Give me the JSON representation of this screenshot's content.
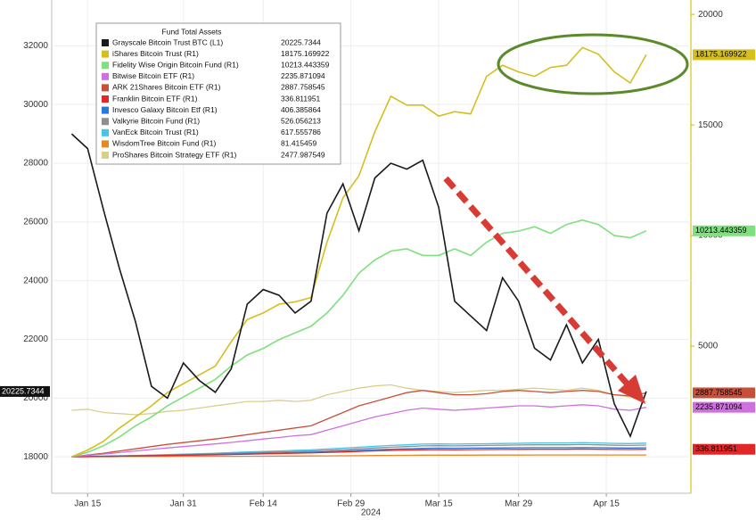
{
  "chart_data": {
    "type": "line",
    "legend_title": "Fund Total Assets",
    "xlabel": "2024",
    "x": [
      0,
      2,
      4,
      6,
      8,
      10,
      12,
      14,
      16,
      18,
      20,
      22,
      24,
      26,
      28,
      30,
      32,
      34,
      36,
      38,
      40,
      42,
      44,
      46,
      48,
      50,
      52,
      54,
      56,
      58,
      60,
      62,
      64,
      66,
      68,
      70,
      72
    ],
    "xlim": [
      -2.5,
      77.6
    ],
    "xticks": [
      {
        "value": 2,
        "label": "Jan 15"
      },
      {
        "value": 14,
        "label": "Jan 31"
      },
      {
        "value": 24,
        "label": "Feb 14"
      },
      {
        "value": 35,
        "label": "Feb 29"
      },
      {
        "value": 46,
        "label": "Mar 15"
      },
      {
        "value": 56,
        "label": "Mar 29"
      },
      {
        "value": 67,
        "label": "Apr 15"
      }
    ],
    "ylim": [
      16760,
      33560
    ],
    "yticks": [
      18000,
      20000,
      22000,
      24000,
      26000,
      28000,
      30000,
      32000
    ],
    "y2lim": [
      -1650,
      20650
    ],
    "y2ticks": [
      5000,
      10000,
      15000,
      20000
    ],
    "grid": true,
    "legend": "upper left",
    "series": [
      {
        "name": "Grayscale Bitcoin Trust BTC  (L1)",
        "color": "#1a1a1a",
        "axis": "y",
        "values": [
          29000,
          28500,
          26400,
          24400,
          22600,
          20400,
          20000,
          21200,
          20600,
          20200,
          21000,
          23200,
          23700,
          23500,
          22900,
          23300,
          26300,
          27300,
          25700,
          27500,
          28000,
          27800,
          28100,
          26500,
          23300,
          22800,
          22300,
          24100,
          23300,
          21700,
          21300,
          22500,
          21200,
          22000,
          19800,
          18700,
          20225.7344
        ]
      },
      {
        "name": "iShares Bitcoin Trust  (R1)",
        "color": "#d4bf1e",
        "axis": "y2",
        "values": [
          0,
          300,
          700,
          1300,
          1800,
          2300,
          2900,
          3300,
          3700,
          4100,
          5200,
          6200,
          6500,
          6900,
          7000,
          7200,
          9700,
          11700,
          12700,
          14700,
          16300,
          15900,
          15900,
          15400,
          15600,
          15500,
          17200,
          17700,
          17400,
          17200,
          17600,
          17700,
          18500,
          18200,
          17400,
          16900,
          18175.169922
        ]
      },
      {
        "name": "Fidelity Wise Origin Bitcoin Fund  (R1)",
        "color": "#7ee07e",
        "axis": "y2",
        "values": [
          0,
          200,
          500,
          900,
          1400,
          1800,
          2300,
          2700,
          3100,
          3500,
          4100,
          4600,
          4900,
          5300,
          5600,
          5900,
          6500,
          7300,
          8300,
          8900,
          9300,
          9400,
          9100,
          9100,
          9400,
          9100,
          9700,
          10100,
          10200,
          10400,
          10100,
          10500,
          10700,
          10500,
          10000,
          9900,
          10213.443359
        ]
      },
      {
        "name": "Bitwise Bitcoin ETF  (R1)",
        "color": "#d070e0",
        "axis": "y2",
        "values": [
          0,
          60,
          120,
          190,
          260,
          330,
          400,
          460,
          520,
          580,
          650,
          720,
          800,
          870,
          950,
          1000,
          1200,
          1400,
          1600,
          1800,
          1950,
          2100,
          2200,
          2150,
          2100,
          2150,
          2200,
          2250,
          2300,
          2300,
          2250,
          2300,
          2350,
          2300,
          2150,
          2100,
          2235.871094
        ]
      },
      {
        "name": "ARK 21Shares Bitcoin ETF  (R1)",
        "color": "#c8503a",
        "axis": "y2",
        "values": [
          0,
          80,
          160,
          260,
          360,
          460,
          560,
          640,
          720,
          800,
          900,
          1000,
          1100,
          1200,
          1300,
          1400,
          1700,
          2000,
          2300,
          2500,
          2700,
          2900,
          3000,
          2900,
          2800,
          2800,
          2850,
          2950,
          3000,
          2950,
          2900,
          2950,
          3000,
          2950,
          2800,
          2750,
          2887.758545
        ]
      },
      {
        "name": "Franklin Bitcoin ETF  (R1)",
        "color": "#e02828",
        "axis": "y2",
        "values": [
          0,
          5,
          15,
          25,
          35,
          45,
          55,
          65,
          75,
          85,
          100,
          115,
          130,
          145,
          160,
          175,
          195,
          215,
          240,
          265,
          285,
          300,
          315,
          320,
          315,
          320,
          325,
          330,
          335,
          340,
          340,
          340,
          345,
          340,
          330,
          325,
          336.811951
        ]
      },
      {
        "name": "Invesco Galaxy Bitcoin Etf  (R1)",
        "color": "#2a78d8",
        "axis": "y2",
        "values": [
          0,
          10,
          20,
          30,
          40,
          50,
          60,
          75,
          90,
          105,
          120,
          140,
          155,
          170,
          190,
          205,
          230,
          260,
          290,
          320,
          340,
          360,
          380,
          390,
          385,
          390,
          395,
          400,
          405,
          410,
          410,
          410,
          415,
          410,
          400,
          395,
          406.385864
        ]
      },
      {
        "name": "Valkyrie Bitcoin Fund  (R1)",
        "color": "#909090",
        "axis": "y2",
        "values": [
          0,
          10,
          20,
          35,
          50,
          65,
          80,
          100,
          120,
          140,
          160,
          180,
          200,
          220,
          240,
          260,
          290,
          320,
          360,
          400,
          430,
          460,
          490,
          500,
          490,
          500,
          510,
          520,
          530,
          540,
          540,
          540,
          550,
          540,
          520,
          510,
          526.056213
        ]
      },
      {
        "name": "VanEck Bitcoin Trust  (R1)",
        "color": "#48c4e4",
        "axis": "y2",
        "values": [
          0,
          15,
          30,
          45,
          60,
          80,
          100,
          120,
          140,
          160,
          190,
          220,
          240,
          260,
          290,
          310,
          350,
          390,
          430,
          470,
          510,
          540,
          570,
          580,
          570,
          580,
          590,
          600,
          610,
          620,
          625,
          625,
          635,
          625,
          605,
          595,
          617.555786
        ]
      },
      {
        "name": "WisdomTree Bitcoin Fund  (R1)",
        "color": "#e08a2a",
        "axis": "y2",
        "values": [
          0,
          2,
          4,
          6,
          8,
          10,
          12,
          14,
          16,
          18,
          20,
          22,
          25,
          28,
          31,
          34,
          38,
          42,
          48,
          54,
          60,
          65,
          70,
          72,
          72,
          73,
          74,
          75,
          76,
          78,
          78,
          78,
          80,
          79,
          78,
          78,
          81.415459
        ]
      },
      {
        "name": "ProShares Bitcoin Strategy ETF  (R1)",
        "color": "#d8d088",
        "axis": "y2",
        "values": [
          2100,
          2150,
          2000,
          1950,
          1900,
          1950,
          2050,
          2100,
          2200,
          2300,
          2400,
          2500,
          2500,
          2550,
          2500,
          2550,
          2800,
          2950,
          3100,
          3200,
          3250,
          3100,
          3000,
          2950,
          2900,
          2950,
          3000,
          3000,
          3050,
          3100,
          3050,
          3000,
          3100,
          3000,
          2800,
          2700,
          2477.987549
        ]
      }
    ]
  }
}
